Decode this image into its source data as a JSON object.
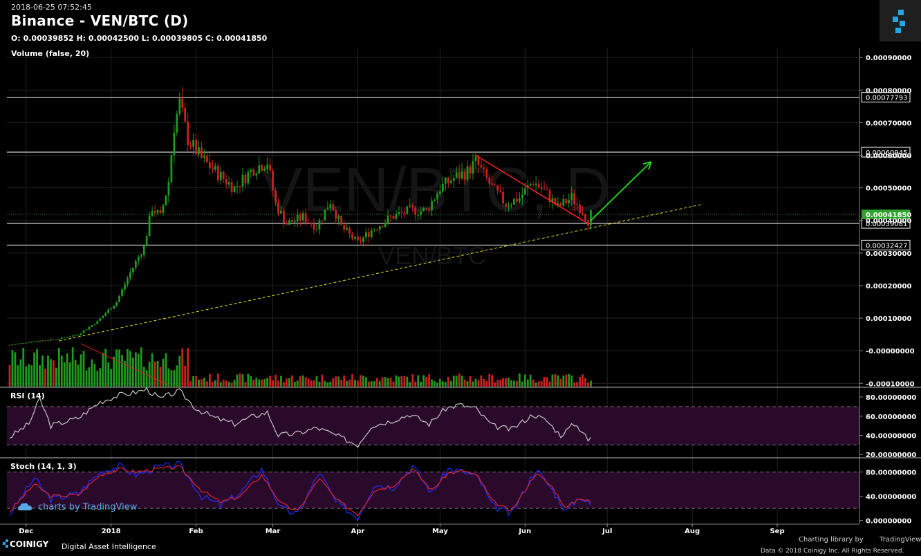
{
  "header": {
    "timestamp": "2018-06-25 07:52:45",
    "title": "Binance - VEN/BTC (D)",
    "ohlc": "O: 0.00039852 H: 0.00042500 L: 0.00039805 C: 0.00041850",
    "volume_label": "Volume (false, 20)"
  },
  "watermark": {
    "big": "VEN/BTC, D",
    "small": "VEN/BTC"
  },
  "colors": {
    "up": "#1f9a1f",
    "down": "#d01f1f",
    "grid": "#222222",
    "rsi_band": "#2a0a2a",
    "stoch_k": "#e02030",
    "stoch_d": "#2030ff",
    "current_price": "#2ea12e"
  },
  "chart_data": [
    {
      "type": "candlestick",
      "title": "Binance - VEN/BTC (D)",
      "x_ticks": [
        "Dec",
        "2018",
        "Feb",
        "Mar",
        "Apr",
        "May",
        "Jun",
        "Jul",
        "Aug",
        "Sep"
      ],
      "y_ticks": [
        "0.00090000",
        "0.00080000",
        "0.00070000",
        "0.00060000",
        "0.00050000",
        "0.00040000",
        "0.00030000",
        "0.00020000",
        "0.00010000",
        "-0.00000000",
        "-0.00010000"
      ],
      "ylim": [
        -0.00011,
        0.00093
      ],
      "current_price": "0.00041850",
      "horizontal_levels": [
        "0.00077793",
        "0.00060945",
        "0.00039081",
        "0.00032427"
      ],
      "close_path": [
        [
          "2017-11-25",
          1.8e-05
        ],
        [
          "2017-12-05",
          3e-05
        ],
        [
          "2017-12-12",
          3.5e-05
        ],
        [
          "2017-12-20",
          5e-05
        ],
        [
          "2017-12-27",
          9e-05
        ],
        [
          "2018-01-03",
          0.00015
        ],
        [
          "2018-01-08",
          0.00024
        ],
        [
          "2018-01-13",
          0.00032
        ],
        [
          "2018-01-16",
          0.00044
        ],
        [
          "2018-01-19",
          0.00041
        ],
        [
          "2018-01-22",
          0.00052
        ],
        [
          "2018-01-24",
          0.00069
        ],
        [
          "2018-01-26",
          0.00076
        ],
        [
          "2018-01-29",
          0.00065
        ],
        [
          "2018-02-03",
          0.00059
        ],
        [
          "2018-02-08",
          0.00055
        ],
        [
          "2018-02-15",
          0.0005
        ],
        [
          "2018-02-22",
          0.00056
        ],
        [
          "2018-02-27",
          0.00058
        ],
        [
          "2018-03-02",
          0.00045
        ],
        [
          "2018-03-06",
          0.00039
        ],
        [
          "2018-03-12",
          0.00041
        ],
        [
          "2018-03-17",
          0.00038
        ],
        [
          "2018-03-22",
          0.00046
        ],
        [
          "2018-03-26",
          0.00038
        ],
        [
          "2018-04-01",
          0.00033
        ],
        [
          "2018-04-06",
          0.00037
        ],
        [
          "2018-04-13",
          0.00041
        ],
        [
          "2018-04-20",
          0.00043
        ],
        [
          "2018-04-26",
          0.00043
        ],
        [
          "2018-05-01",
          0.0005
        ],
        [
          "2018-05-06",
          0.00053
        ],
        [
          "2018-05-11",
          0.00055
        ],
        [
          "2018-05-14",
          0.00058
        ],
        [
          "2018-05-20",
          0.0005
        ],
        [
          "2018-05-25",
          0.00045
        ],
        [
          "2018-05-30",
          0.00047
        ],
        [
          "2018-06-04",
          0.00052
        ],
        [
          "2018-06-08",
          0.00049
        ],
        [
          "2018-06-13",
          0.00044
        ],
        [
          "2018-06-18",
          0.00047
        ],
        [
          "2018-06-22",
          0.00043
        ],
        [
          "2018-06-24",
          0.000399
        ],
        [
          "2018-06-25",
          0.0004185
        ]
      ],
      "annotations": [
        {
          "type": "trendline-red",
          "from": [
            "2018-05-14",
            0.0006
          ],
          "to": [
            "2018-06-24",
            0.00039
          ]
        },
        {
          "type": "arrow-green",
          "from": [
            "2018-06-25",
            0.0004
          ],
          "to": [
            "2018-07-17",
            0.00058
          ]
        },
        {
          "type": "trendline-yellow-dashed",
          "from": [
            "2017-12-13",
            3e-05
          ],
          "to": [
            "2018-08-05",
            0.00045
          ]
        }
      ]
    },
    {
      "type": "line",
      "title": "RSI (14)",
      "y_ticks": [
        "80.00000000",
        "60.00000000",
        "40.00000000",
        "20.00000000"
      ],
      "ylim": [
        18,
        88
      ],
      "bands": [
        30,
        70
      ],
      "series": [
        {
          "values": [
            [
              "2017-11-25",
              38
            ],
            [
              "2017-12-02",
              52
            ],
            [
              "2017-12-06",
              78
            ],
            [
              "2017-12-10",
              50
            ],
            [
              "2017-12-20",
              58
            ],
            [
              "2017-12-28",
              75
            ],
            [
              "2018-01-04",
              82
            ],
            [
              "2018-01-10",
              85
            ],
            [
              "2018-01-14",
              88
            ],
            [
              "2018-01-19",
              78
            ],
            [
              "2018-01-22",
              82
            ],
            [
              "2018-01-26",
              86
            ],
            [
              "2018-02-01",
              68
            ],
            [
              "2018-02-08",
              58
            ],
            [
              "2018-02-15",
              52
            ],
            [
              "2018-02-22",
              60
            ],
            [
              "2018-02-27",
              64
            ],
            [
              "2018-03-03",
              40
            ],
            [
              "2018-03-10",
              42
            ],
            [
              "2018-03-17",
              48
            ],
            [
              "2018-03-24",
              40
            ],
            [
              "2018-04-01",
              30
            ],
            [
              "2018-04-06",
              50
            ],
            [
              "2018-04-13",
              55
            ],
            [
              "2018-04-20",
              62
            ],
            [
              "2018-04-27",
              52
            ],
            [
              "2018-05-03",
              68
            ],
            [
              "2018-05-08",
              72
            ],
            [
              "2018-05-14",
              68
            ],
            [
              "2018-05-20",
              50
            ],
            [
              "2018-05-27",
              46
            ],
            [
              "2018-06-04",
              62
            ],
            [
              "2018-06-09",
              55
            ],
            [
              "2018-06-14",
              40
            ],
            [
              "2018-06-19",
              52
            ],
            [
              "2018-06-23",
              42
            ],
            [
              "2018-06-24",
              32
            ],
            [
              "2018-06-25",
              38
            ]
          ]
        }
      ]
    },
    {
      "type": "line",
      "title": "Stoch (14, 1, 3)",
      "y_ticks": [
        "80.00000000",
        "40.00000000",
        "0.00000000"
      ],
      "ylim": [
        -5,
        100
      ],
      "bands": [
        20,
        80
      ],
      "series": [
        {
          "values": [
            [
              "2017-11-25",
              10
            ],
            [
              "2017-12-04",
              70
            ],
            [
              "2017-12-10",
              35
            ],
            [
              "2017-12-20",
              45
            ],
            [
              "2017-12-28",
              80
            ],
            [
              "2018-01-04",
              90
            ],
            [
              "2018-01-10",
              75
            ],
            [
              "2018-01-18",
              88
            ],
            [
              "2018-01-26",
              92
            ],
            [
              "2018-02-03",
              40
            ],
            [
              "2018-02-10",
              25
            ],
            [
              "2018-02-17",
              45
            ],
            [
              "2018-02-25",
              85
            ],
            [
              "2018-03-04",
              20
            ],
            [
              "2018-03-10",
              10
            ],
            [
              "2018-03-18",
              80
            ],
            [
              "2018-03-24",
              30
            ],
            [
              "2018-04-01",
              5
            ],
            [
              "2018-04-07",
              60
            ],
            [
              "2018-04-14",
              55
            ],
            [
              "2018-04-21",
              90
            ],
            [
              "2018-04-28",
              45
            ],
            [
              "2018-05-04",
              85
            ],
            [
              "2018-05-10",
              80
            ],
            [
              "2018-05-15",
              70
            ],
            [
              "2018-05-20",
              25
            ],
            [
              "2018-05-27",
              10
            ],
            [
              "2018-06-05",
              85
            ],
            [
              "2018-06-11",
              50
            ],
            [
              "2018-06-16",
              15
            ],
            [
              "2018-06-21",
              40
            ],
            [
              "2018-06-25",
              25
            ]
          ]
        },
        {
          "values": [
            [
              "2017-11-25",
              15
            ],
            [
              "2017-12-04",
              60
            ],
            [
              "2017-12-10",
              40
            ],
            [
              "2017-12-20",
              42
            ],
            [
              "2017-12-28",
              75
            ],
            [
              "2018-01-04",
              85
            ],
            [
              "2018-01-10",
              80
            ],
            [
              "2018-01-18",
              85
            ],
            [
              "2018-01-26",
              88
            ],
            [
              "2018-02-03",
              50
            ],
            [
              "2018-02-10",
              30
            ],
            [
              "2018-02-17",
              40
            ],
            [
              "2018-02-25",
              75
            ],
            [
              "2018-03-04",
              28
            ],
            [
              "2018-03-10",
              15
            ],
            [
              "2018-03-18",
              70
            ],
            [
              "2018-03-24",
              35
            ],
            [
              "2018-04-01",
              10
            ],
            [
              "2018-04-07",
              50
            ],
            [
              "2018-04-14",
              58
            ],
            [
              "2018-04-21",
              85
            ],
            [
              "2018-04-28",
              50
            ],
            [
              "2018-05-04",
              78
            ],
            [
              "2018-05-10",
              82
            ],
            [
              "2018-05-15",
              72
            ],
            [
              "2018-05-20",
              32
            ],
            [
              "2018-05-27",
              15
            ],
            [
              "2018-06-05",
              78
            ],
            [
              "2018-06-11",
              55
            ],
            [
              "2018-06-16",
              20
            ],
            [
              "2018-06-21",
              38
            ],
            [
              "2018-06-25",
              30
            ]
          ]
        }
      ]
    }
  ],
  "footer": {
    "tv_watermark": "charts by TradingView",
    "brand": "COINIGY",
    "tagline": "Digital Asset Intelligence",
    "library": "Charting library by",
    "tv_name": "TradingView",
    "data_credit": "Data © 2018  Coinigy Inc. All Rights Reserved."
  }
}
